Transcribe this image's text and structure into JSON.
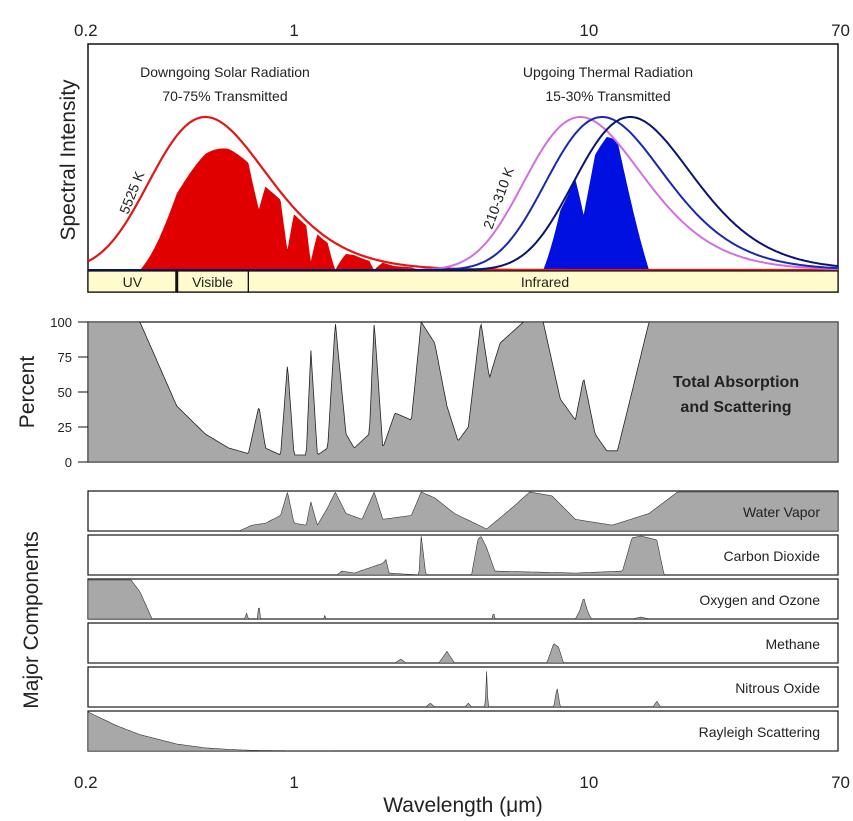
{
  "chart_data": [
    {
      "type": "area",
      "panel": "spectral",
      "x_scale": "log",
      "xlim": [
        0.2,
        70
      ],
      "x_ticks": [
        "0.2",
        "1",
        "10",
        "70"
      ],
      "x_tick_values": [
        0.2,
        1,
        10,
        70
      ],
      "ylabel": "Spectral Intensity",
      "annotations": [
        {
          "line1": "Downgoing Solar Radiation",
          "line2": "70-75% Transmitted"
        },
        {
          "line1": "Upgoing Thermal Radiation",
          "line2": "15-30% Transmitted"
        }
      ],
      "curve_labels": [
        "5525 K",
        "210-310 K"
      ],
      "bands": [
        {
          "label": "UV",
          "from": 0.2,
          "to": 0.4
        },
        {
          "label": "Visible",
          "from": 0.4,
          "to": 0.7
        },
        {
          "label": "Infrared",
          "from": 0.7,
          "to": 70
        }
      ],
      "solar_curve": {
        "temperature_K": 5525,
        "peak_um": 0.5,
        "color": "#e01818"
      },
      "thermal_curves": [
        {
          "temperature_K": 310,
          "peak_um": 9.35,
          "color": "#d070e0"
        },
        {
          "temperature_K": 260,
          "peak_um": 11.1,
          "color": "#1a28b0"
        },
        {
          "temperature_K": 210,
          "peak_um": 13.8,
          "color": "#0a1470"
        }
      ],
      "colors": {
        "solar_fill": "#e00000",
        "thermal_fill": "#0010e0",
        "band_fill": "#fffbcc"
      }
    },
    {
      "type": "area",
      "panel": "total",
      "ylabel": "Percent",
      "y_ticks": [
        "100",
        "75",
        "50",
        "25",
        "0"
      ],
      "y_tick_values": [
        100,
        75,
        50,
        25,
        0
      ],
      "ylim": [
        0,
        100
      ],
      "label_line1": "Total Absorption",
      "label_line2": "and Scattering",
      "x": [
        0.2,
        0.3,
        0.4,
        0.5,
        0.6,
        0.7,
        0.76,
        0.8,
        0.9,
        0.95,
        1.0,
        1.05,
        1.1,
        1.14,
        1.2,
        1.3,
        1.38,
        1.5,
        1.6,
        1.8,
        1.87,
        2.0,
        2.2,
        2.5,
        2.7,
        3.0,
        3.3,
        3.6,
        3.9,
        4.3,
        4.6,
        5.0,
        6.0,
        7.0,
        8.0,
        9.0,
        9.6,
        10.5,
        11.5,
        12.5,
        14.0,
        16.0,
        20.0,
        30.0,
        70.0
      ],
      "values": [
        100,
        100,
        40,
        20,
        10,
        6,
        40,
        10,
        5,
        70,
        5,
        5,
        5,
        80,
        5,
        10,
        100,
        20,
        10,
        20,
        100,
        10,
        35,
        30,
        100,
        85,
        40,
        15,
        25,
        100,
        60,
        85,
        100,
        100,
        45,
        30,
        60,
        20,
        8,
        8,
        50,
        100,
        100,
        100,
        100
      ],
      "color": "#a8a8a8"
    },
    {
      "type": "area",
      "panel": "components",
      "ylabel": "Major Components",
      "xlabel": "Wavelength (μm)",
      "x_ticks": [
        "0.2",
        "1",
        "10",
        "70"
      ],
      "series": [
        {
          "name": "Water Vapor",
          "x": [
            0.2,
            0.65,
            0.72,
            0.8,
            0.9,
            0.95,
            1.0,
            1.1,
            1.14,
            1.2,
            1.3,
            1.38,
            1.5,
            1.7,
            1.87,
            2.0,
            2.5,
            2.7,
            3.0,
            3.5,
            4.5,
            5.5,
            6.3,
            7.5,
            9.0,
            12.0,
            16.0,
            20.0,
            30.0,
            70.0
          ],
          "values": [
            0,
            0,
            15,
            20,
            40,
            100,
            20,
            15,
            75,
            15,
            60,
            100,
            45,
            30,
            100,
            30,
            40,
            100,
            85,
            45,
            5,
            60,
            100,
            90,
            30,
            15,
            45,
            100,
            100,
            100
          ]
        },
        {
          "name": "Carbon Dioxide",
          "x": [
            0.2,
            1.4,
            1.45,
            1.6,
            2.0,
            2.05,
            2.1,
            2.65,
            2.7,
            2.8,
            3.0,
            4.0,
            4.2,
            4.3,
            4.5,
            4.8,
            9.0,
            13.0,
            14.0,
            15.0,
            17.0,
            18.0,
            70.0
          ],
          "values": [
            0,
            0,
            10,
            5,
            30,
            40,
            5,
            0,
            100,
            0,
            0,
            0,
            90,
            100,
            70,
            10,
            5,
            10,
            95,
            100,
            90,
            0,
            0
          ]
        },
        {
          "name": "Oxygen and Ozone",
          "x": [
            0.2,
            0.28,
            0.3,
            0.33,
            0.68,
            0.69,
            0.7,
            0.75,
            0.76,
            0.77,
            1.26,
            1.27,
            1.28,
            4.7,
            4.75,
            4.8,
            9.0,
            9.3,
            9.6,
            9.9,
            10.2,
            14.0,
            15.0,
            16.0,
            70.0
          ],
          "values": [
            100,
            100,
            70,
            0,
            0,
            15,
            0,
            0,
            40,
            0,
            0,
            10,
            0,
            0,
            20,
            0,
            0,
            20,
            55,
            20,
            0,
            0,
            5,
            0,
            0
          ]
        },
        {
          "name": "Methane",
          "x": [
            0.2,
            2.2,
            2.3,
            2.4,
            3.1,
            3.3,
            3.5,
            7.2,
            7.6,
            7.9,
            8.2,
            70.0
          ],
          "values": [
            0,
            0,
            10,
            0,
            0,
            30,
            0,
            0,
            50,
            40,
            0,
            0
          ]
        },
        {
          "name": "Nitrous Oxide",
          "x": [
            0.2,
            2.8,
            2.9,
            3.0,
            3.8,
            3.9,
            4.0,
            4.45,
            4.5,
            4.55,
            7.6,
            7.8,
            8.0,
            16.5,
            17.0,
            17.5,
            70.0
          ],
          "values": [
            0,
            0,
            10,
            0,
            0,
            10,
            0,
            0,
            95,
            0,
            0,
            50,
            0,
            0,
            15,
            0,
            0
          ]
        },
        {
          "name": "Rayleigh Scattering",
          "x": [
            0.2,
            0.25,
            0.3,
            0.4,
            0.5,
            0.6,
            0.7,
            0.8,
            1.0,
            1.5,
            2.0,
            70.0
          ],
          "values": [
            100,
            65,
            42,
            18,
            8,
            4,
            2,
            1,
            0.5,
            0,
            0,
            0
          ]
        }
      ],
      "color": "#a8a8a8"
    }
  ]
}
